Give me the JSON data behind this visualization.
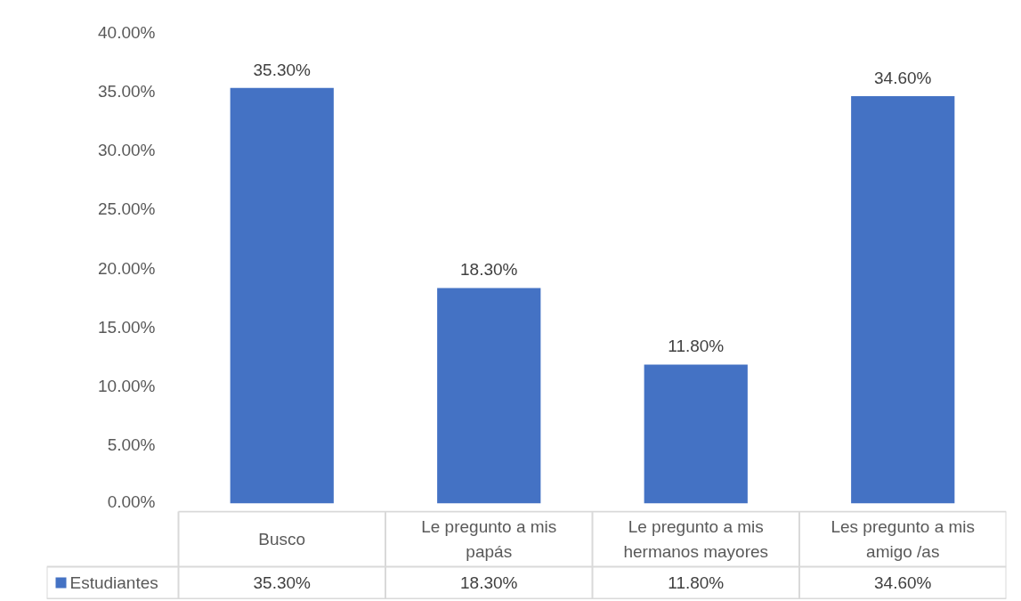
{
  "chart_data": {
    "type": "bar",
    "categories": [
      "Busco",
      "Le pregunto a mis papás",
      "Le pregunto a mis hermanos mayores",
      "Les pregunto a mis amigo /as"
    ],
    "series": [
      {
        "name": "Estudiantes",
        "color": "#4472c4",
        "values": [
          35.3,
          18.3,
          11.8,
          34.6
        ],
        "value_labels": [
          "35.30%",
          "18.30%",
          "11.80%",
          "34.60%"
        ]
      }
    ],
    "ylim": [
      0,
      40
    ],
    "yticks": [
      {
        "value": 0,
        "label": "0.00%"
      },
      {
        "value": 5,
        "label": "5.00%"
      },
      {
        "value": 10,
        "label": "10.00%"
      },
      {
        "value": 15,
        "label": "15.00%"
      },
      {
        "value": 20,
        "label": "20.00%"
      },
      {
        "value": 25,
        "label": "25.00%"
      },
      {
        "value": 30,
        "label": "30.00%"
      },
      {
        "value": 35,
        "label": "35.00%"
      },
      {
        "value": 40,
        "label": "40.00%"
      }
    ],
    "grid": false,
    "legend": "bottom"
  }
}
